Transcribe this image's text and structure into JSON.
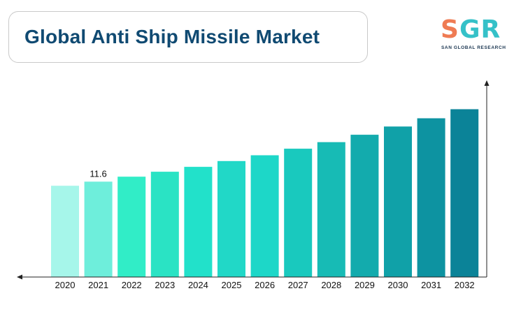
{
  "header": {
    "title": "Global Anti Ship Missile Market"
  },
  "logo": {
    "letter_s": "S",
    "letters_gr": "GR",
    "tagline": "SAN GLOBAL RESEARCH",
    "colors": {
      "s": "#ef7b53",
      "gr": "#35c1c8",
      "tagline": "#1a3550"
    }
  },
  "chart_data": {
    "type": "bar",
    "title": "Global Anti Ship Missile Market",
    "xlabel": "",
    "ylabel": "",
    "categories": [
      "2020",
      "2021",
      "2022",
      "2023",
      "2024",
      "2025",
      "2026",
      "2027",
      "2028",
      "2029",
      "2030",
      "2031",
      "2032"
    ],
    "values": [
      11.1,
      11.6,
      12.2,
      12.8,
      13.4,
      14.1,
      14.8,
      15.6,
      16.4,
      17.3,
      18.3,
      19.3,
      20.4
    ],
    "data_labels": [
      {
        "category": "2021",
        "text": "11.6"
      }
    ],
    "ylim": [
      0,
      23.5
    ],
    "grid": false,
    "legend": "none",
    "bar_colors": [
      "#a6f6ea",
      "#6eeedb",
      "#31edc7",
      "#2ae3c4",
      "#22e1ca",
      "#21d8c7",
      "#1dd7c8",
      "#19c9be",
      "#17bbb5",
      "#13abad",
      "#10a1a8",
      "#0d93a1",
      "#0b8398"
    ],
    "axis_color": "#222222"
  }
}
